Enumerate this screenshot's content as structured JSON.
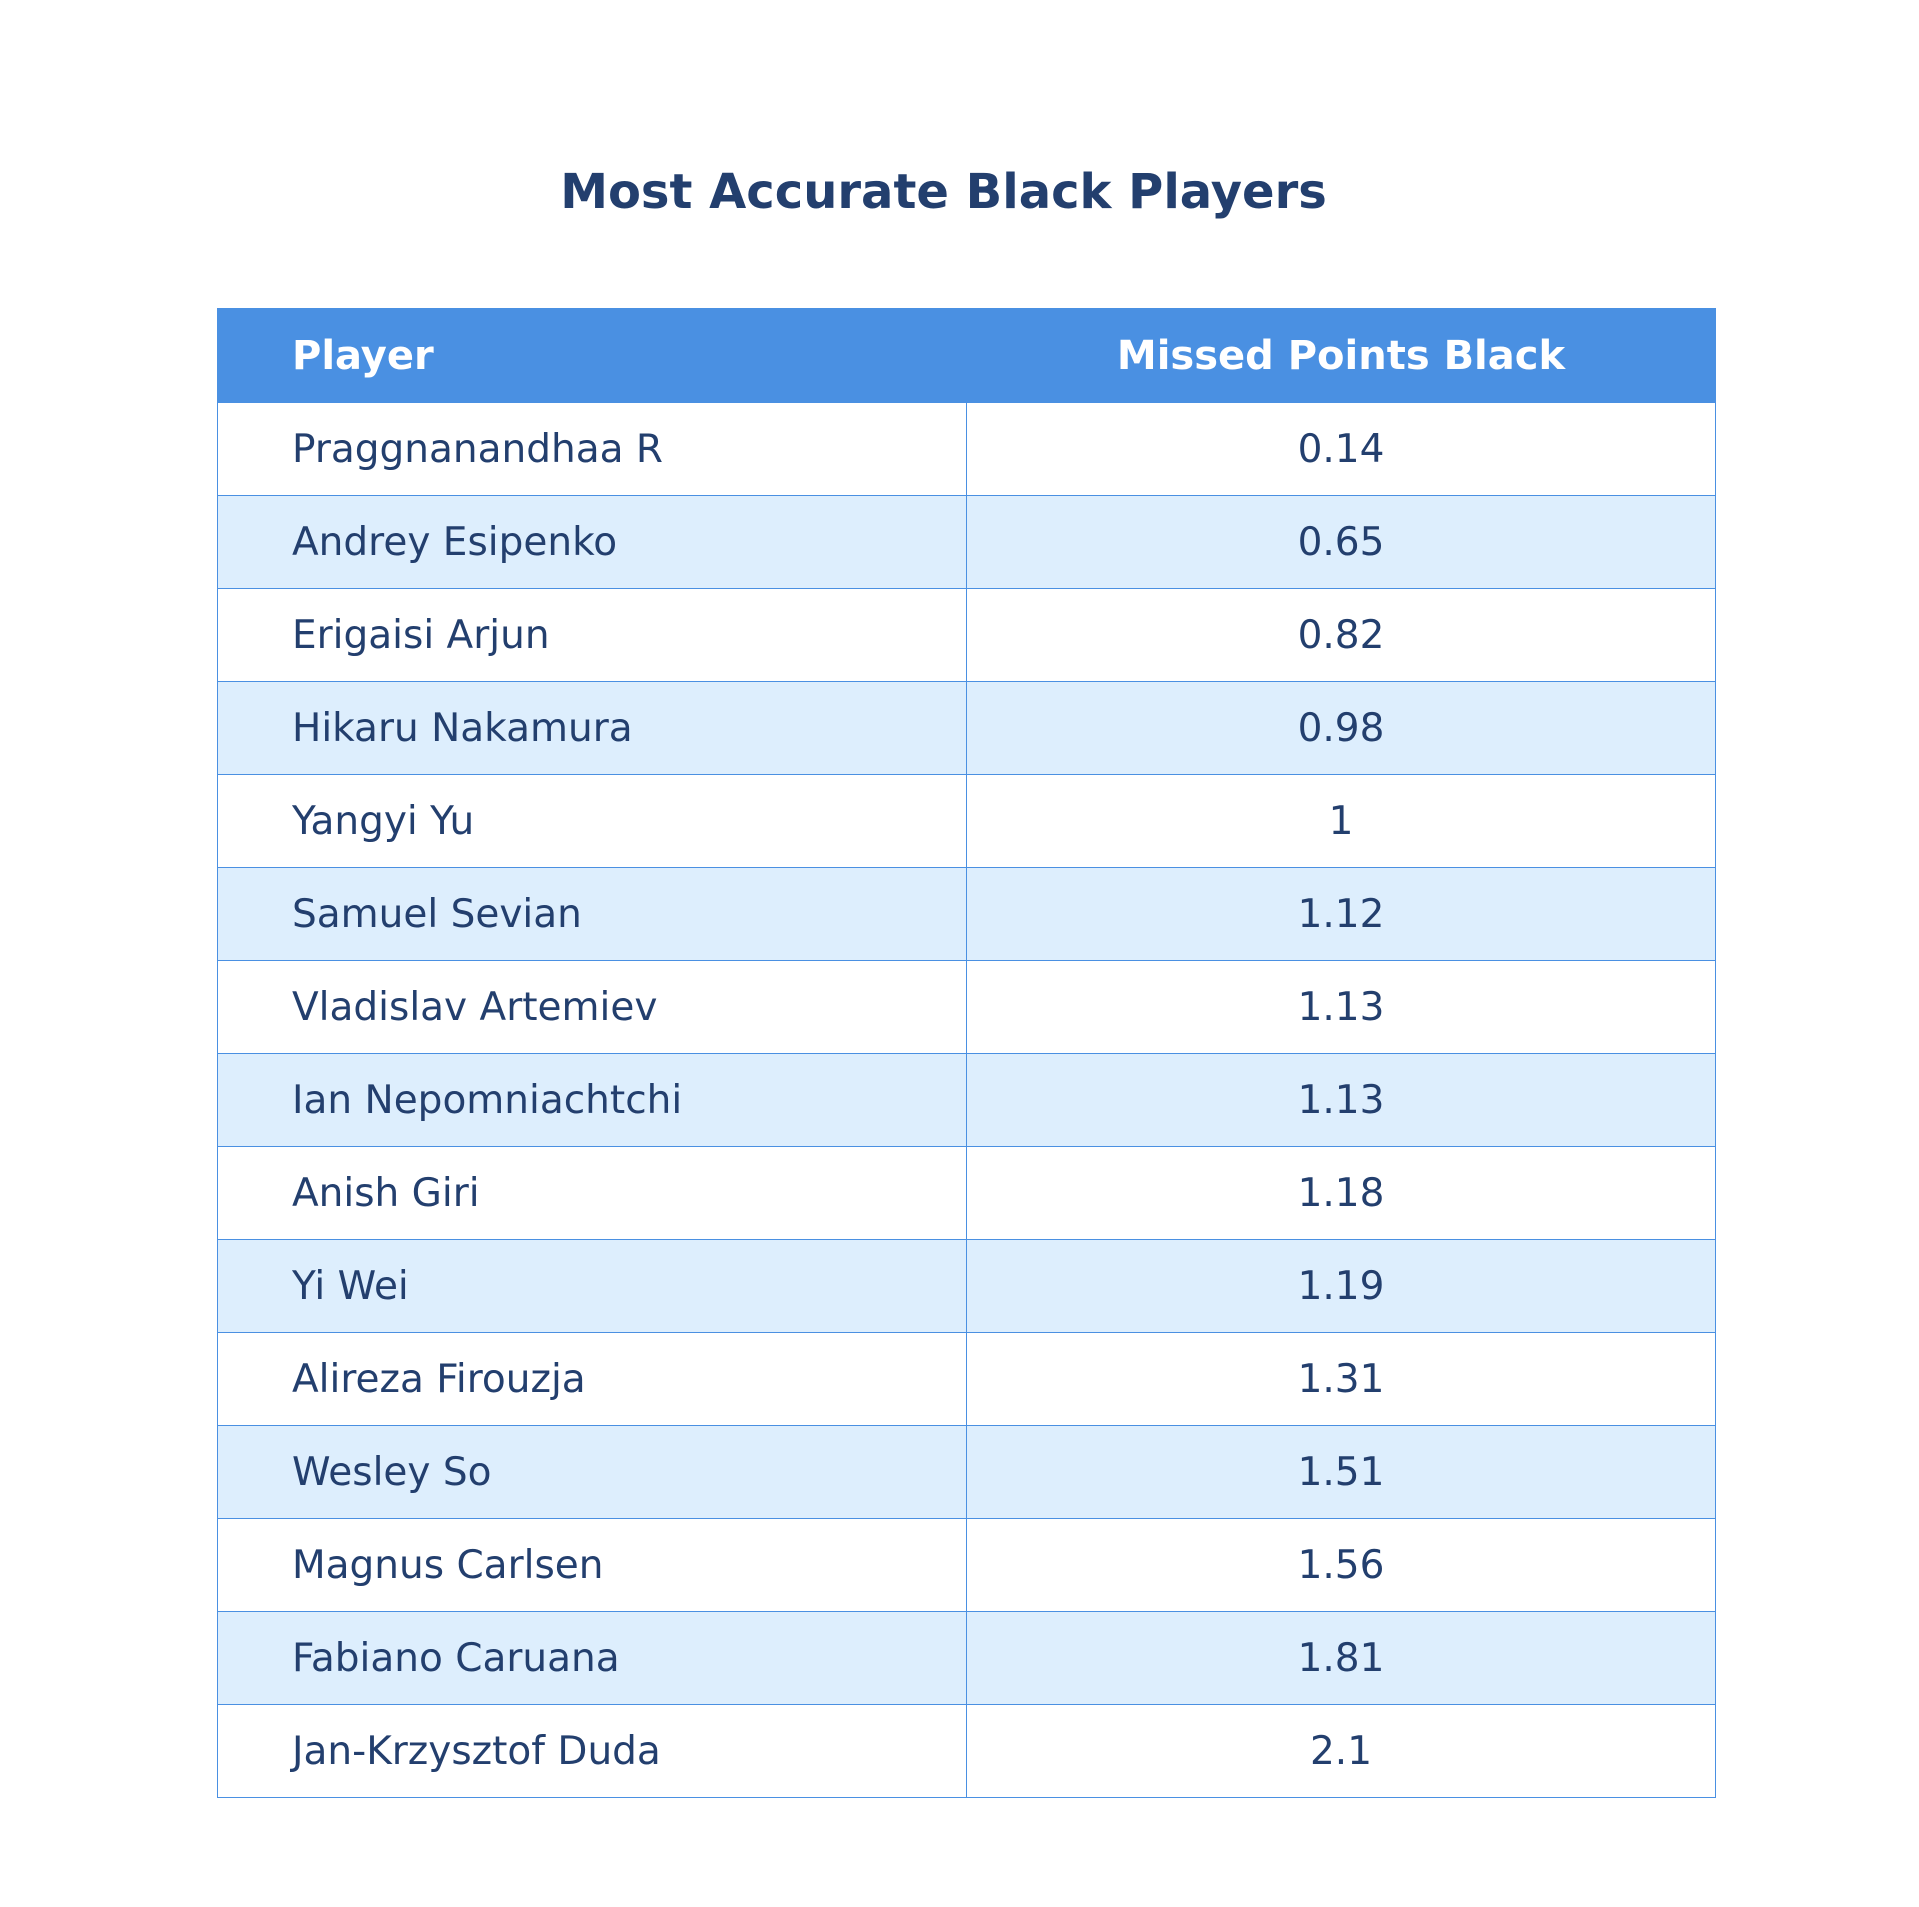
{
  "chart_data": {
    "type": "table",
    "title": "Most Accurate Black Players",
    "columns": [
      "Player",
      "Missed Points Black"
    ],
    "rows": [
      {
        "player": "Praggnanandhaa R",
        "value": "0.14"
      },
      {
        "player": "Andrey Esipenko",
        "value": "0.65"
      },
      {
        "player": "Erigaisi Arjun",
        "value": "0.82"
      },
      {
        "player": "Hikaru Nakamura",
        "value": "0.98"
      },
      {
        "player": "Yangyi Yu",
        "value": "1"
      },
      {
        "player": "Samuel Sevian",
        "value": "1.12"
      },
      {
        "player": "Vladislav Artemiev",
        "value": "1.13"
      },
      {
        "player": "Ian Nepomniachtchi",
        "value": "1.13"
      },
      {
        "player": "Anish Giri",
        "value": "1.18"
      },
      {
        "player": "Yi Wei",
        "value": "1.19"
      },
      {
        "player": "Alireza Firouzja",
        "value": "1.31"
      },
      {
        "player": "Wesley So",
        "value": "1.51"
      },
      {
        "player": "Magnus Carlsen",
        "value": "1.56"
      },
      {
        "player": "Fabiano Caruana",
        "value": "1.81"
      },
      {
        "player": "Jan-Krzysztof Duda",
        "value": "2.1"
      }
    ]
  },
  "colors": {
    "header_bg": "#4a90e2",
    "header_text": "#ffffff",
    "text": "#233f6e",
    "row_alt_bg": "#ddeefd",
    "row_bg": "#ffffff",
    "border": "#4a90e2"
  }
}
